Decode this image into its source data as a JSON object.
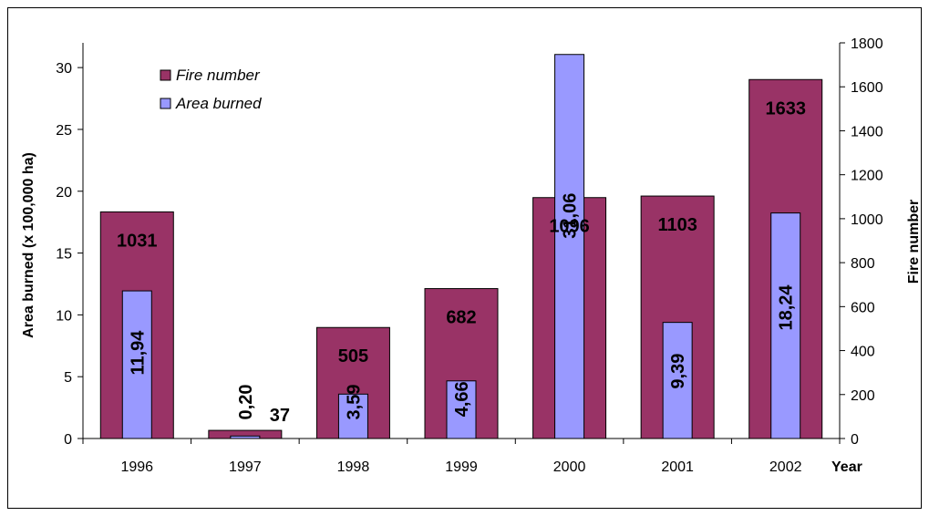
{
  "chart_data": {
    "type": "bar",
    "categories": [
      "1996",
      "1997",
      "1998",
      "1999",
      "2000",
      "2001",
      "2002"
    ],
    "xlabel": "Year",
    "ylabel": "Area burned (x 100,000 ha)",
    "y2label": "Fire number",
    "ylim": [
      0,
      32
    ],
    "y2lim": [
      0,
      1800
    ],
    "yticks": [
      "0",
      "5",
      "10",
      "15",
      "20",
      "25",
      "30"
    ],
    "y2ticks": [
      "0",
      "200",
      "400",
      "600",
      "800",
      "1000",
      "1200",
      "1400",
      "1600",
      "1800"
    ],
    "legend_position": "top-left",
    "grid": false,
    "series": [
      {
        "name": "Fire number",
        "axis": "right",
        "color": "#993366",
        "values": [
          1031,
          37,
          505,
          682,
          1096,
          1103,
          1633
        ],
        "labels": [
          "1031",
          "37",
          "505",
          "682",
          "1096",
          "1103",
          "1633"
        ]
      },
      {
        "name": "Area burned",
        "axis": "left",
        "color": "#9999FF",
        "values": [
          11.94,
          0.2,
          3.59,
          4.66,
          31.06,
          9.39,
          18.24
        ],
        "labels": [
          "11,94",
          "0,20",
          "3,59",
          "4,66",
          "31,06",
          "9,39",
          "18,24"
        ]
      }
    ]
  }
}
